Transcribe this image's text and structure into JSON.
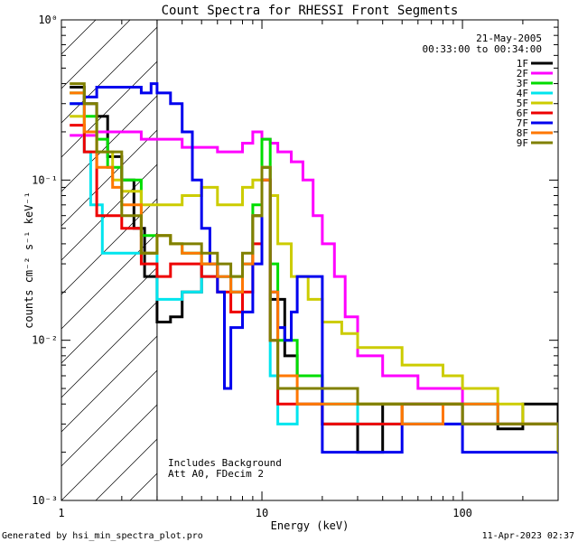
{
  "chart_data": {
    "type": "line",
    "title": "Count Spectra for RHESSI Front Segments",
    "xlabel": "Energy (keV)",
    "ylabel": "counts cm⁻² s⁻¹ keV⁻¹",
    "xscale": "log",
    "yscale": "log",
    "xlim": [
      1,
      300
    ],
    "ylim": [
      0.001,
      1
    ],
    "xtick_labels": [
      "1",
      "10",
      "100"
    ],
    "ytick_labels": [
      "10⁻³",
      "10⁻²",
      "10⁻¹",
      "10⁰"
    ],
    "shaded_region_xmax": 3,
    "date": "21-May-2005",
    "time_range": "00:33:00 to 00:34:00",
    "notes": [
      "Includes Background",
      "Att A0, FDecim 2"
    ],
    "footer_left": "Generated by hsi_min_spectra_plot.pro",
    "footer_right": "11-Apr-2023 02:37",
    "series": [
      {
        "name": "1F",
        "color": "#000000",
        "x": [
          1.1,
          1.3,
          1.5,
          1.7,
          2.0,
          2.3,
          2.6,
          3.0,
          3.5,
          4.0,
          5.0,
          6.0,
          7.0,
          8.0,
          9.0,
          10.0,
          11.0,
          13.0,
          15.0,
          20.0,
          30.0,
          40.0,
          60.0,
          100.0,
          150.0,
          200.0,
          300.0
        ],
        "y": [
          0.38,
          0.3,
          0.25,
          0.14,
          0.1,
          0.05,
          0.025,
          0.013,
          0.014,
          0.02,
          0.03,
          0.025,
          0.02,
          0.03,
          0.06,
          0.12,
          0.018,
          0.008,
          0.006,
          0.003,
          0.002,
          0.004,
          0.004,
          0.003,
          0.0028,
          0.004,
          0.002
        ]
      },
      {
        "name": "2F",
        "color": "#ff00ff",
        "x": [
          1.1,
          1.3,
          1.5,
          2.0,
          2.5,
          3.0,
          4.0,
          5.0,
          6.0,
          7.0,
          8.0,
          9.0,
          10.0,
          11.0,
          12.0,
          14.0,
          16.0,
          18.0,
          20.0,
          23.0,
          26.0,
          30.0,
          40.0,
          60.0,
          100.0,
          150.0,
          200.0,
          300.0
        ],
        "y": [
          0.19,
          0.19,
          0.2,
          0.2,
          0.18,
          0.18,
          0.16,
          0.16,
          0.15,
          0.15,
          0.17,
          0.2,
          0.18,
          0.17,
          0.15,
          0.13,
          0.1,
          0.06,
          0.04,
          0.025,
          0.014,
          0.008,
          0.006,
          0.005,
          0.004,
          0.003,
          0.003,
          0.002
        ]
      },
      {
        "name": "3F",
        "color": "#00dd00",
        "x": [
          1.1,
          1.3,
          1.5,
          1.7,
          2.0,
          2.5,
          3.0,
          3.5,
          4.0,
          5.0,
          6.0,
          7.0,
          8.0,
          9.0,
          10.0,
          11.0,
          12.0,
          15.0,
          20.0,
          30.0,
          50.0,
          80.0,
          100.0,
          150.0,
          200.0,
          300.0
        ],
        "y": [
          0.35,
          0.25,
          0.18,
          0.12,
          0.1,
          0.045,
          0.045,
          0.04,
          0.035,
          0.03,
          0.025,
          0.025,
          0.03,
          0.07,
          0.18,
          0.03,
          0.01,
          0.006,
          0.004,
          0.004,
          0.003,
          0.004,
          0.004,
          0.003,
          0.003,
          0.002
        ]
      },
      {
        "name": "4F",
        "color": "#00e5ee",
        "x": [
          1.1,
          1.3,
          1.4,
          1.6,
          2.0,
          2.5,
          3.0,
          3.5,
          4.0,
          5.0,
          6.0,
          7.0,
          8.0,
          9.0,
          10.0,
          11.0,
          12.0,
          15.0,
          20.0,
          30.0,
          50.0,
          80.0,
          100.0,
          150.0,
          200.0,
          300.0
        ],
        "y": [
          0.3,
          0.15,
          0.07,
          0.035,
          0.035,
          0.035,
          0.018,
          0.018,
          0.02,
          0.025,
          0.025,
          0.02,
          0.03,
          0.06,
          0.12,
          0.006,
          0.003,
          0.004,
          0.004,
          0.003,
          0.003,
          0.003,
          0.004,
          0.003,
          0.003,
          0.002
        ]
      },
      {
        "name": "5F",
        "color": "#cccc00",
        "x": [
          1.1,
          1.3,
          1.5,
          1.8,
          2.0,
          2.5,
          3.0,
          4.0,
          5.0,
          6.0,
          7.0,
          8.0,
          9.0,
          10.0,
          11.0,
          12.0,
          14.0,
          17.0,
          20.0,
          25.0,
          30.0,
          50.0,
          80.0,
          100.0,
          150.0,
          200.0,
          300.0
        ],
        "y": [
          0.25,
          0.2,
          0.15,
          0.1,
          0.085,
          0.07,
          0.07,
          0.08,
          0.09,
          0.07,
          0.07,
          0.09,
          0.1,
          0.12,
          0.08,
          0.04,
          0.025,
          0.018,
          0.013,
          0.011,
          0.009,
          0.007,
          0.006,
          0.005,
          0.004,
          0.003,
          0.003
        ]
      },
      {
        "name": "6F",
        "color": "#ee0000",
        "x": [
          1.1,
          1.3,
          1.5,
          2.0,
          2.5,
          3.0,
          3.5,
          4.0,
          5.0,
          6.0,
          7.0,
          8.0,
          9.0,
          10.0,
          11.0,
          12.0,
          15.0,
          20.0,
          30.0,
          50.0,
          80.0,
          100.0,
          150.0,
          200.0,
          300.0
        ],
        "y": [
          0.22,
          0.15,
          0.06,
          0.05,
          0.03,
          0.025,
          0.03,
          0.03,
          0.025,
          0.02,
          0.015,
          0.02,
          0.04,
          0.1,
          0.01,
          0.004,
          0.004,
          0.003,
          0.003,
          0.004,
          0.004,
          0.003,
          0.003,
          0.003,
          0.002
        ]
      },
      {
        "name": "7F",
        "color": "#0000ee",
        "x": [
          1.1,
          1.3,
          1.5,
          2.0,
          2.5,
          2.8,
          3.0,
          3.5,
          4.0,
          4.5,
          5.0,
          5.5,
          6.0,
          6.5,
          7.0,
          8.0,
          9.0,
          10.0,
          11.0,
          12.0,
          13.0,
          14.0,
          15.0,
          20.0,
          30.0,
          50.0,
          100.0,
          150.0,
          200.0,
          300.0
        ],
        "y": [
          0.3,
          0.33,
          0.38,
          0.38,
          0.35,
          0.4,
          0.35,
          0.3,
          0.2,
          0.1,
          0.05,
          0.03,
          0.02,
          0.005,
          0.012,
          0.015,
          0.03,
          0.1,
          0.02,
          0.012,
          0.01,
          0.015,
          0.025,
          0.002,
          0.002,
          0.003,
          0.002,
          0.002,
          0.002,
          0.002
        ]
      },
      {
        "name": "8F",
        "color": "#ff7700",
        "x": [
          1.1,
          1.3,
          1.5,
          1.8,
          2.0,
          2.5,
          3.0,
          3.5,
          4.0,
          5.0,
          6.0,
          7.0,
          8.0,
          9.0,
          10.0,
          11.0,
          12.0,
          15.0,
          20.0,
          30.0,
          50.0,
          80.0,
          100.0,
          150.0,
          200.0,
          300.0
        ],
        "y": [
          0.35,
          0.2,
          0.12,
          0.09,
          0.07,
          0.035,
          0.045,
          0.04,
          0.035,
          0.03,
          0.025,
          0.02,
          0.03,
          0.06,
          0.1,
          0.02,
          0.006,
          0.004,
          0.004,
          0.004,
          0.003,
          0.004,
          0.004,
          0.003,
          0.003,
          0.002
        ]
      },
      {
        "name": "9F",
        "color": "#808000",
        "x": [
          1.1,
          1.3,
          1.5,
          2.0,
          2.5,
          3.0,
          3.5,
          4.0,
          5.0,
          6.0,
          7.0,
          8.0,
          9.0,
          10.0,
          11.0,
          12.0,
          15.0,
          20.0,
          30.0,
          50.0,
          80.0,
          100.0,
          150.0,
          200.0,
          300.0
        ],
        "y": [
          0.4,
          0.3,
          0.15,
          0.06,
          0.035,
          0.045,
          0.04,
          0.04,
          0.035,
          0.03,
          0.025,
          0.035,
          0.06,
          0.12,
          0.01,
          0.005,
          0.005,
          0.005,
          0.004,
          0.004,
          0.004,
          0.003,
          0.003,
          0.003,
          0.002
        ]
      }
    ]
  }
}
